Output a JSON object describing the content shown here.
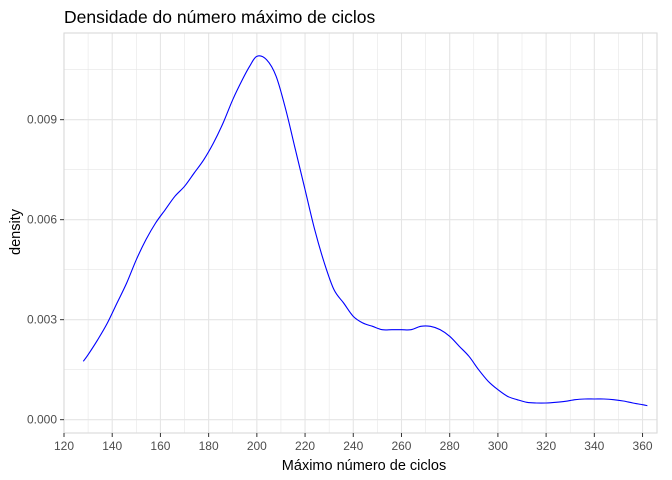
{
  "chart_data": {
    "type": "line",
    "title": "Densidade do número máximo de ciclos",
    "xlabel": "Máximo número de ciclos",
    "ylabel": "density",
    "xlim": [
      120,
      366
    ],
    "ylim": [
      -0.0004,
      0.0116
    ],
    "x_ticks": [
      120,
      140,
      160,
      180,
      200,
      220,
      240,
      260,
      280,
      300,
      320,
      340,
      360
    ],
    "x_tick_labels": [
      "120",
      "140",
      "160",
      "180",
      "200",
      "220",
      "240",
      "260",
      "280",
      "300",
      "320",
      "340",
      "360"
    ],
    "y_ticks": [
      0.0,
      0.003,
      0.006,
      0.009
    ],
    "y_tick_labels": [
      "0.000",
      "0.003",
      "0.006",
      "0.009"
    ],
    "grid": true,
    "legend": "none",
    "colors": {
      "line": "#0000ff",
      "grid": "#e5e5e5",
      "panel_border": "#d9d9d9",
      "tick_text": "#4d4d4d"
    },
    "series": [
      {
        "x": [
          128,
          130,
          134,
          138,
          142,
          146,
          150,
          154,
          158,
          162,
          166,
          170,
          174,
          178,
          182,
          186,
          190,
          194,
          197,
          200,
          204,
          208,
          212,
          216,
          220,
          224,
          228,
          232,
          236,
          240,
          244,
          248,
          252,
          256,
          260,
          264,
          268,
          272,
          276,
          280,
          284,
          288,
          292,
          296,
          300,
          304,
          308,
          312,
          316,
          320,
          324,
          328,
          332,
          336,
          340,
          344,
          348,
          352,
          356,
          360,
          362
        ],
        "values": [
          0.00175,
          0.00195,
          0.0024,
          0.0029,
          0.0035,
          0.0041,
          0.0048,
          0.0054,
          0.0059,
          0.0063,
          0.0067,
          0.007,
          0.0074,
          0.0078,
          0.0083,
          0.0089,
          0.0096,
          0.0102,
          0.0106,
          0.0109,
          0.0108,
          0.0103,
          0.0093,
          0.0081,
          0.0069,
          0.0057,
          0.0047,
          0.0039,
          0.0035,
          0.0031,
          0.0029,
          0.0028,
          0.0027,
          0.0027,
          0.0027,
          0.0027,
          0.0028,
          0.0028,
          0.0027,
          0.0025,
          0.0022,
          0.0019,
          0.0015,
          0.00115,
          0.0009,
          0.0007,
          0.0006,
          0.00052,
          0.0005,
          0.0005,
          0.00052,
          0.00055,
          0.0006,
          0.00062,
          0.00062,
          0.00062,
          0.0006,
          0.00056,
          0.0005,
          0.00045,
          0.00042
        ]
      }
    ]
  }
}
